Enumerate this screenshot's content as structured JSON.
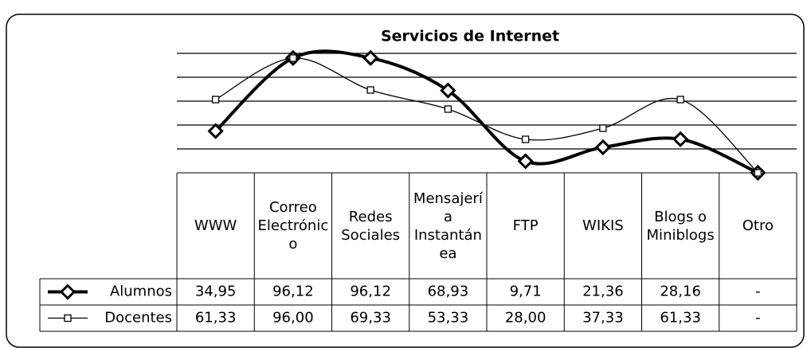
{
  "chart_data": {
    "type": "line",
    "title": "Servicios de Internet",
    "categories": [
      "WWW",
      "Correo Electrónico",
      "Redes Sociales",
      "Mensajería Instantánea",
      "FTP",
      "WIKIS",
      "Blogs o Miniblogs",
      "Otro"
    ],
    "series": [
      {
        "name": "Alumnos",
        "color": "#000000",
        "values": [
          34.95,
          96.12,
          96.12,
          68.93,
          9.71,
          21.36,
          28.16,
          0
        ],
        "value_labels": [
          "34,95",
          "96,12",
          "96,12",
          "68,93",
          "9,71",
          "21,36",
          "28,16",
          "-"
        ]
      },
      {
        "name": "Docentes",
        "color": "#000000",
        "values": [
          61.33,
          96.0,
          69.33,
          53.33,
          28.0,
          37.33,
          61.33,
          0
        ],
        "value_labels": [
          "61,33",
          "96,00",
          "69,33",
          "53,33",
          "28,00",
          "37,33",
          "61,33",
          "-"
        ]
      }
    ],
    "ylim": [
      0,
      100
    ],
    "yticks": [
      20,
      40,
      60,
      80,
      100
    ],
    "grid": true
  }
}
